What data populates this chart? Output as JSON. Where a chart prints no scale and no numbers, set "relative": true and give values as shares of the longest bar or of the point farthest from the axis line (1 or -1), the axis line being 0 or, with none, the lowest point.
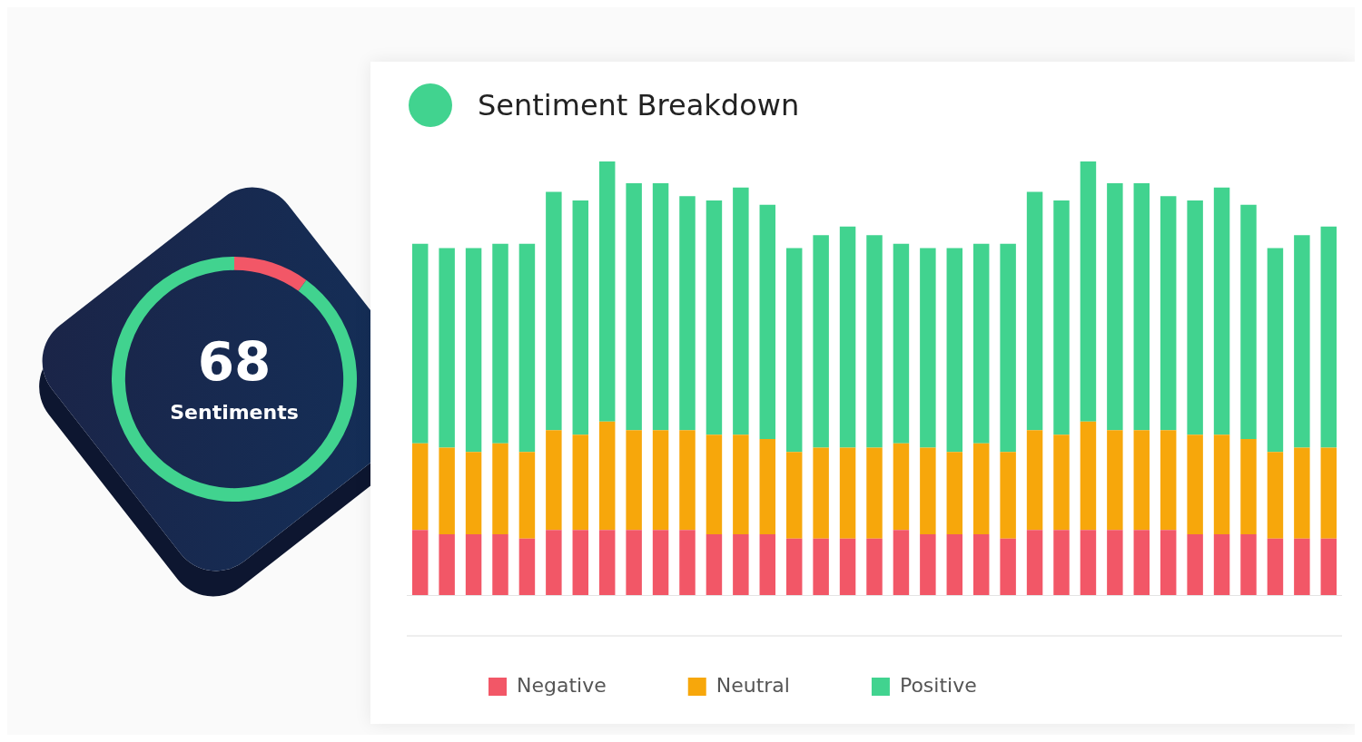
{
  "chart_data": [
    {
      "type": "donut",
      "categories": [
        null,
        null
      ],
      "values": [
        10,
        90
      ],
      "colors": [
        "#f25767",
        "#41d38f"
      ],
      "annotations": [
        "68",
        "Sentiments"
      ],
      "legend": false
    },
    {
      "type": "bar",
      "title": "Sentiment Breakdown",
      "relative": true,
      "stacked": true,
      "grid": false,
      "legend": "bottom left",
      "categories": [
        null,
        null,
        null,
        null,
        null,
        null,
        null,
        null,
        null,
        null,
        null,
        null,
        null,
        null,
        null,
        null,
        null,
        null,
        null,
        null,
        null,
        null,
        null,
        null,
        null,
        null,
        null,
        null,
        null,
        null,
        null,
        null,
        null,
        null,
        null
      ],
      "series": [
        {
          "name": "Negative",
          "color": "#f25767",
          "values": [
            0.15,
            0.14,
            0.14,
            0.14,
            0.13,
            0.15,
            0.15,
            0.15,
            0.15,
            0.15,
            0.15,
            0.14,
            0.14,
            0.14,
            0.13,
            0.13,
            0.13,
            0.13,
            0.15,
            0.14,
            0.14,
            0.14,
            0.13,
            0.15,
            0.15,
            0.15,
            0.15,
            0.15,
            0.15,
            0.14,
            0.14,
            0.14,
            0.13,
            0.13,
            0.13
          ]
        },
        {
          "name": "Neutral",
          "color": "#f7a70b",
          "values": [
            0.2,
            0.2,
            0.19,
            0.21,
            0.2,
            0.23,
            0.22,
            0.25,
            0.23,
            0.23,
            0.23,
            0.23,
            0.23,
            0.22,
            0.2,
            0.21,
            0.21,
            0.21,
            0.2,
            0.2,
            0.19,
            0.21,
            0.2,
            0.23,
            0.22,
            0.25,
            0.23,
            0.23,
            0.23,
            0.23,
            0.23,
            0.22,
            0.2,
            0.21,
            0.21
          ]
        },
        {
          "name": "Positive",
          "color": "#41d38f",
          "values": [
            0.46,
            0.46,
            0.47,
            0.46,
            0.48,
            0.55,
            0.54,
            0.6,
            0.57,
            0.57,
            0.54,
            0.54,
            0.57,
            0.54,
            0.47,
            0.49,
            0.51,
            0.49,
            0.46,
            0.46,
            0.47,
            0.46,
            0.48,
            0.55,
            0.54,
            0.6,
            0.57,
            0.57,
            0.54,
            0.54,
            0.57,
            0.54,
            0.47,
            0.49,
            0.51
          ]
        }
      ]
    }
  ]
}
